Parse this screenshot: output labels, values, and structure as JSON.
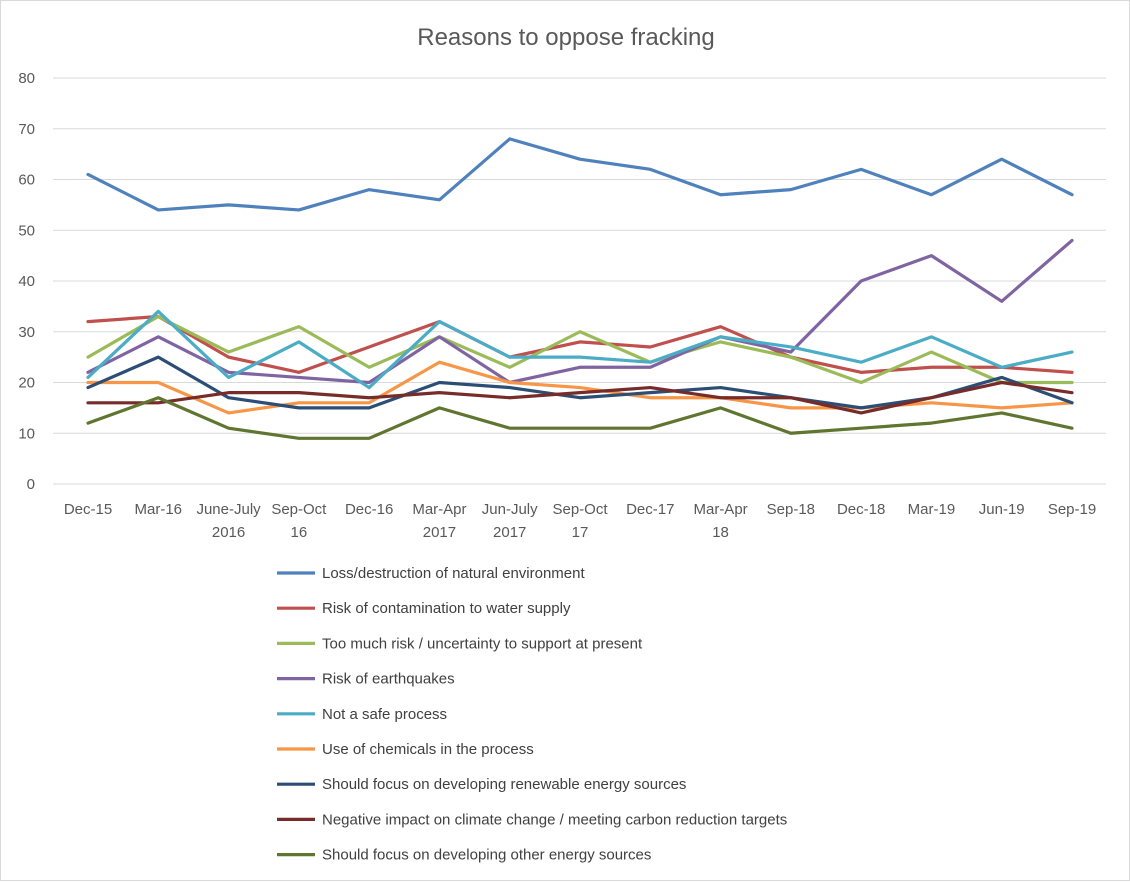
{
  "chart_data": {
    "type": "line",
    "title": "Reasons to oppose fracking",
    "xlabel": "",
    "ylabel": "",
    "ylim": [
      0,
      80
    ],
    "yticks": [
      0,
      10,
      20,
      30,
      40,
      50,
      60,
      70,
      80
    ],
    "grid": true,
    "legend_position": "bottom",
    "categories": [
      [
        "Dec-15"
      ],
      [
        "Mar-16"
      ],
      [
        "June-July",
        "2016"
      ],
      [
        "Sep-Oct",
        "16"
      ],
      [
        "Dec-16"
      ],
      [
        "Mar-Apr",
        "2017"
      ],
      [
        "Jun-July",
        "2017"
      ],
      [
        "Sep-Oct",
        "17"
      ],
      [
        "Dec-17"
      ],
      [
        "Mar-Apr",
        "18"
      ],
      [
        "Sep-18"
      ],
      [
        "Dec-18"
      ],
      [
        "Mar-19"
      ],
      [
        "Jun-19"
      ],
      [
        "Sep-19"
      ]
    ],
    "series": [
      {
        "name": "Loss/destruction of natural environment",
        "color": "#4f81bd",
        "values": [
          61,
          54,
          55,
          54,
          58,
          56,
          68,
          64,
          62,
          57,
          58,
          62,
          57,
          64,
          57
        ]
      },
      {
        "name": "Risk of contamination to water supply",
        "color": "#c0504d",
        "values": [
          32,
          33,
          25,
          22,
          27,
          32,
          25,
          28,
          27,
          31,
          25,
          22,
          23,
          23,
          22
        ]
      },
      {
        "name": "Too much risk / uncertainty to support at present",
        "color": "#9bbb59",
        "values": [
          25,
          33,
          26,
          31,
          23,
          29,
          23,
          30,
          24,
          28,
          25,
          20,
          26,
          20,
          20
        ]
      },
      {
        "name": "Risk of earthquakes",
        "color": "#8064a2",
        "values": [
          22,
          29,
          22,
          21,
          20,
          29,
          20,
          23,
          23,
          29,
          26,
          40,
          45,
          36,
          48
        ]
      },
      {
        "name": "Not a safe process",
        "color": "#4bacc6",
        "values": [
          21,
          34,
          21,
          28,
          19,
          32,
          25,
          25,
          24,
          29,
          27,
          24,
          29,
          23,
          26
        ]
      },
      {
        "name": "Use of chemicals in the process",
        "color": "#f79646",
        "values": [
          20,
          20,
          14,
          16,
          16,
          24,
          20,
          19,
          17,
          17,
          15,
          15,
          16,
          15,
          16
        ]
      },
      {
        "name": "Should focus on developing renewable energy sources",
        "color": "#2c4d75",
        "values": [
          19,
          25,
          17,
          15,
          15,
          20,
          19,
          17,
          18,
          19,
          17,
          15,
          17,
          21,
          16
        ]
      },
      {
        "name": "Negative impact on climate change / meeting carbon reduction targets",
        "color": "#772c2a",
        "values": [
          16,
          16,
          18,
          18,
          17,
          18,
          17,
          18,
          19,
          17,
          17,
          14,
          17,
          20,
          18
        ]
      },
      {
        "name": "Should focus on developing other energy sources",
        "color": "#5f7530",
        "values": [
          12,
          17,
          11,
          9,
          9,
          15,
          11,
          11,
          11,
          15,
          10,
          11,
          12,
          14,
          11
        ]
      }
    ]
  }
}
